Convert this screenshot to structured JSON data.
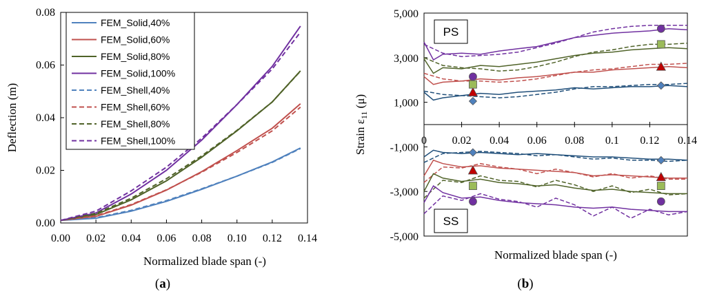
{
  "charts": {
    "a": {
      "type": "line",
      "panel_label": "a",
      "xlabel": "Normalized blade span (-)",
      "ylabel": "Deflection (m)",
      "xlim": [
        0,
        0.14
      ],
      "ylim": [
        0,
        0.08
      ],
      "x_ticks": [
        "0.00",
        "0.02",
        "0.04",
        "0.06",
        "0.08",
        "0.10",
        "0.12",
        "0.14"
      ],
      "y_ticks": [
        "0.00",
        "0.02",
        "0.04",
        "0.06",
        "0.08"
      ],
      "x": [
        0,
        0.02,
        0.04,
        0.06,
        0.08,
        0.1,
        0.12,
        0.136
      ],
      "series": [
        {
          "name": "FEM_Solid,40%",
          "color": "#4f81bd",
          "dash": false,
          "values": [
            0.001,
            0.0018,
            0.0045,
            0.0082,
            0.0128,
            0.0178,
            0.0232,
            0.0285
          ]
        },
        {
          "name": "FEM_Solid,60%",
          "color": "#c0504d",
          "dash": false,
          "values": [
            0.001,
            0.0025,
            0.0068,
            0.0125,
            0.0195,
            0.0275,
            0.036,
            0.0453
          ]
        },
        {
          "name": "FEM_Solid,80%",
          "color": "#4f6228",
          "dash": false,
          "values": [
            0.001,
            0.0032,
            0.0088,
            0.016,
            0.025,
            0.035,
            0.046,
            0.0578
          ]
        },
        {
          "name": "FEM_Solid,100%",
          "color": "#7030a0",
          "dash": false,
          "values": [
            0.001,
            0.0038,
            0.011,
            0.02,
            0.0315,
            0.045,
            0.0595,
            0.0748
          ]
        },
        {
          "name": "FEM_Shell,40%",
          "color": "#4f81bd",
          "dash": true,
          "values": [
            0.001,
            0.002,
            0.0048,
            0.0085,
            0.013,
            0.0178,
            0.023,
            0.0283
          ]
        },
        {
          "name": "FEM_Shell,60%",
          "color": "#c0504d",
          "dash": true,
          "values": [
            0.001,
            0.0027,
            0.007,
            0.0126,
            0.0193,
            0.0268,
            0.035,
            0.044
          ]
        },
        {
          "name": "FEM_Shell,80%",
          "color": "#4f6228",
          "dash": true,
          "values": [
            0.001,
            0.0036,
            0.0094,
            0.0168,
            0.0255,
            0.0352,
            0.046,
            0.0577
          ]
        },
        {
          "name": "FEM_Shell,100%",
          "color": "#7030a0",
          "dash": true,
          "values": [
            0.001,
            0.0045,
            0.0122,
            0.0212,
            0.0322,
            0.045,
            0.0585,
            0.0725
          ]
        }
      ]
    },
    "b": {
      "type": "line",
      "panel_label": "b",
      "xlabel": "Normalized blade span (-)",
      "ylabel_prefix": "Strain ε",
      "ylabel_sub": "11",
      "ylabel_suffix": " (μ)",
      "xlim": [
        0,
        0.14
      ],
      "ylim": [
        -5000,
        5000
      ],
      "x_ticks": [
        "0",
        "0.02",
        "0.04",
        "0.06",
        "0.08",
        "0.1",
        "0.12",
        "0.14"
      ],
      "y_ticks": [
        "5,000",
        "3,000",
        "1,000",
        "-1,000",
        "-3,000",
        "-5,000"
      ],
      "box_ps": "PS",
      "box_ss": "SS",
      "marker_x": [
        0.026,
        0.126
      ],
      "series": [
        {
          "name": "PS Solid 40%",
          "color": "#1f4e79",
          "dash": false,
          "x": [
            0,
            0.005,
            0.01,
            0.02,
            0.03,
            0.04,
            0.05,
            0.06,
            0.07,
            0.08,
            0.09,
            0.1,
            0.11,
            0.12,
            0.13,
            0.14
          ],
          "values": [
            1450,
            1100,
            1200,
            1300,
            1400,
            1350,
            1450,
            1500,
            1550,
            1650,
            1600,
            1650,
            1700,
            1700,
            1750,
            1700
          ]
        },
        {
          "name": "PS Shell 40%",
          "color": "#1f4e79",
          "dash": true,
          "x": [
            0,
            0.01,
            0.02,
            0.03,
            0.04,
            0.05,
            0.06,
            0.07,
            0.08,
            0.09,
            0.1,
            0.11,
            0.12,
            0.13,
            0.14
          ],
          "values": [
            1500,
            1350,
            1300,
            1250,
            1200,
            1250,
            1350,
            1450,
            1600,
            1700,
            1700,
            1750,
            1800,
            1800,
            1850
          ]
        },
        {
          "name": "PS Solid 60%",
          "color": "#c0504d",
          "dash": false,
          "x": [
            0,
            0.005,
            0.01,
            0.02,
            0.03,
            0.04,
            0.05,
            0.06,
            0.07,
            0.08,
            0.09,
            0.1,
            0.11,
            0.12,
            0.13,
            0.14
          ],
          "values": [
            2150,
            1800,
            1900,
            1950,
            2050,
            2000,
            2100,
            2150,
            2250,
            2350,
            2350,
            2450,
            2500,
            2550,
            2600,
            2550
          ]
        },
        {
          "name": "PS Shell 60%",
          "color": "#c0504d",
          "dash": true,
          "x": [
            0,
            0.01,
            0.02,
            0.03,
            0.04,
            0.05,
            0.06,
            0.07,
            0.08,
            0.09,
            0.1,
            0.11,
            0.12,
            0.13,
            0.14
          ],
          "values": [
            2300,
            2050,
            1950,
            1950,
            1900,
            1950,
            2050,
            2200,
            2350,
            2450,
            2500,
            2600,
            2700,
            2700,
            2750
          ]
        },
        {
          "name": "PS Solid 80%",
          "color": "#4f6228",
          "dash": false,
          "x": [
            0,
            0.005,
            0.01,
            0.02,
            0.03,
            0.04,
            0.05,
            0.06,
            0.07,
            0.08,
            0.09,
            0.1,
            0.11,
            0.12,
            0.13,
            0.14
          ],
          "values": [
            2950,
            2300,
            2550,
            2500,
            2650,
            2600,
            2700,
            2800,
            2950,
            3100,
            3200,
            3250,
            3350,
            3400,
            3450,
            3400
          ]
        },
        {
          "name": "PS Shell 80%",
          "color": "#4f6228",
          "dash": true,
          "x": [
            0,
            0.01,
            0.02,
            0.03,
            0.04,
            0.05,
            0.06,
            0.07,
            0.08,
            0.09,
            0.1,
            0.11,
            0.12,
            0.13,
            0.14
          ],
          "values": [
            3000,
            2650,
            2550,
            2500,
            2400,
            2450,
            2600,
            2800,
            3050,
            3250,
            3350,
            3500,
            3600,
            3600,
            3650
          ]
        },
        {
          "name": "PS Solid 100%",
          "color": "#7030a0",
          "dash": false,
          "x": [
            0,
            0.005,
            0.01,
            0.02,
            0.03,
            0.04,
            0.05,
            0.06,
            0.07,
            0.08,
            0.09,
            0.1,
            0.11,
            0.12,
            0.13,
            0.14
          ],
          "values": [
            3700,
            2900,
            3150,
            3200,
            3150,
            3300,
            3400,
            3500,
            3700,
            3900,
            4000,
            4100,
            4150,
            4200,
            4300,
            4250
          ]
        },
        {
          "name": "PS Shell 100%",
          "color": "#7030a0",
          "dash": true,
          "x": [
            0,
            0.01,
            0.02,
            0.03,
            0.04,
            0.05,
            0.06,
            0.07,
            0.08,
            0.09,
            0.1,
            0.11,
            0.12,
            0.13,
            0.14
          ],
          "values": [
            3600,
            3200,
            3050,
            3100,
            3150,
            3250,
            3450,
            3650,
            3900,
            4150,
            4300,
            4400,
            4450,
            4450,
            4450
          ]
        },
        {
          "name": "SS Solid 40%",
          "color": "#1f4e79",
          "dash": false,
          "x": [
            0,
            0.005,
            0.01,
            0.02,
            0.03,
            0.04,
            0.05,
            0.06,
            0.07,
            0.08,
            0.09,
            0.1,
            0.11,
            0.12,
            0.13,
            0.14
          ],
          "values": [
            -1450,
            -1150,
            -1250,
            -1300,
            -1250,
            -1300,
            -1350,
            -1300,
            -1350,
            -1400,
            -1450,
            -1450,
            -1500,
            -1550,
            -1550,
            -1600
          ]
        },
        {
          "name": "SS Shell 40%",
          "color": "#1f4e79",
          "dash": true,
          "x": [
            0,
            0.01,
            0.02,
            0.03,
            0.04,
            0.05,
            0.06,
            0.07,
            0.08,
            0.09,
            0.1,
            0.11,
            0.12,
            0.13,
            0.14
          ],
          "values": [
            -1700,
            -1300,
            -1250,
            -1200,
            -1250,
            -1300,
            -1400,
            -1350,
            -1450,
            -1550,
            -1500,
            -1600,
            -1600,
            -1650,
            -1600
          ]
        },
        {
          "name": "SS Solid 60%",
          "color": "#c0504d",
          "dash": false,
          "x": [
            0,
            0.005,
            0.01,
            0.02,
            0.03,
            0.04,
            0.05,
            0.06,
            0.07,
            0.08,
            0.09,
            0.1,
            0.11,
            0.12,
            0.13,
            0.14
          ],
          "values": [
            -2300,
            -1600,
            -1750,
            -1900,
            -1850,
            -1950,
            -2000,
            -2050,
            -2100,
            -2150,
            -2300,
            -2250,
            -2300,
            -2350,
            -2400,
            -2400
          ]
        },
        {
          "name": "SS Shell 60%",
          "color": "#c0504d",
          "dash": true,
          "x": [
            0,
            0.01,
            0.02,
            0.03,
            0.04,
            0.05,
            0.06,
            0.07,
            0.08,
            0.09,
            0.1,
            0.11,
            0.12,
            0.13,
            0.14
          ],
          "values": [
            -2600,
            -1900,
            -1950,
            -1750,
            -1900,
            -2000,
            -2200,
            -2000,
            -2150,
            -2350,
            -2200,
            -2400,
            -2300,
            -2450,
            -2450
          ]
        },
        {
          "name": "SS Solid 80%",
          "color": "#4f6228",
          "dash": false,
          "x": [
            0,
            0.005,
            0.01,
            0.02,
            0.03,
            0.04,
            0.05,
            0.06,
            0.07,
            0.08,
            0.09,
            0.1,
            0.11,
            0.12,
            0.13,
            0.14
          ],
          "values": [
            -3000,
            -2200,
            -2400,
            -2550,
            -2450,
            -2600,
            -2650,
            -2750,
            -2700,
            -2850,
            -2950,
            -2900,
            -3000,
            -3050,
            -3100,
            -3100
          ]
        },
        {
          "name": "SS Shell 80%",
          "color": "#4f6228",
          "dash": true,
          "x": [
            0,
            0.01,
            0.02,
            0.03,
            0.04,
            0.05,
            0.06,
            0.07,
            0.08,
            0.09,
            0.1,
            0.11,
            0.12,
            0.13,
            0.14
          ],
          "values": [
            -3300,
            -2500,
            -2600,
            -2300,
            -2500,
            -2550,
            -2800,
            -2500,
            -2700,
            -3000,
            -2750,
            -3050,
            -2900,
            -3150,
            -3100
          ]
        },
        {
          "name": "SS Solid 100%",
          "color": "#7030a0",
          "dash": false,
          "x": [
            0,
            0.005,
            0.01,
            0.02,
            0.03,
            0.04,
            0.05,
            0.06,
            0.07,
            0.08,
            0.09,
            0.1,
            0.11,
            0.12,
            0.13,
            0.14
          ],
          "values": [
            -3500,
            -2750,
            -3050,
            -3300,
            -3250,
            -3400,
            -3500,
            -3550,
            -3600,
            -3700,
            -3750,
            -3700,
            -3800,
            -3850,
            -3900,
            -3900
          ]
        },
        {
          "name": "SS Shell 100%",
          "color": "#7030a0",
          "dash": true,
          "x": [
            0,
            0.01,
            0.02,
            0.03,
            0.04,
            0.05,
            0.06,
            0.07,
            0.08,
            0.09,
            0.1,
            0.11,
            0.12,
            0.13,
            0.14
          ],
          "values": [
            -4000,
            -3200,
            -3400,
            -3100,
            -3350,
            -3450,
            -3700,
            -3300,
            -3600,
            -4100,
            -3700,
            -4200,
            -3800,
            -4050,
            -3900
          ]
        }
      ],
      "markers": [
        {
          "name": "PS 40% diamond",
          "shape": "diamond",
          "color": "#4f81bd",
          "x": 0.026,
          "y": 1050
        },
        {
          "name": "PS 60% triangle",
          "shape": "triangle",
          "color": "#c00000",
          "x": 0.026,
          "y": 1450
        },
        {
          "name": "PS 80% square",
          "shape": "square",
          "color": "#9bbb59",
          "x": 0.026,
          "y": 1800
        },
        {
          "name": "PS 100% circle",
          "shape": "circle",
          "color": "#7030a0",
          "x": 0.026,
          "y": 2150
        },
        {
          "name": "PS 40% diamond 2",
          "shape": "diamond",
          "color": "#4f81bd",
          "x": 0.126,
          "y": 1750
        },
        {
          "name": "PS 60% triangle 2",
          "shape": "triangle",
          "color": "#c00000",
          "x": 0.126,
          "y": 2600
        },
        {
          "name": "PS 80% square 2",
          "shape": "square",
          "color": "#9bbb59",
          "x": 0.126,
          "y": 3600
        },
        {
          "name": "PS 100% circle 2",
          "shape": "circle",
          "color": "#7030a0",
          "x": 0.126,
          "y": 4300
        },
        {
          "name": "SS 40% diamond",
          "shape": "diamond",
          "color": "#4f81bd",
          "x": 0.026,
          "y": -1250
        },
        {
          "name": "SS 60% triangle",
          "shape": "triangle",
          "color": "#c00000",
          "x": 0.026,
          "y": -2050
        },
        {
          "name": "SS 80% square",
          "shape": "square",
          "color": "#9bbb59",
          "x": 0.026,
          "y": -2750
        },
        {
          "name": "SS 100% circle",
          "shape": "circle",
          "color": "#7030a0",
          "x": 0.026,
          "y": -3450
        },
        {
          "name": "SS 40% diamond 2",
          "shape": "diamond",
          "color": "#4f81bd",
          "x": 0.126,
          "y": -1600
        },
        {
          "name": "SS 60% triangle 2",
          "shape": "triangle",
          "color": "#c00000",
          "x": 0.126,
          "y": -2350
        },
        {
          "name": "SS 80% square 2",
          "shape": "square",
          "color": "#9bbb59",
          "x": 0.126,
          "y": -2750
        },
        {
          "name": "SS 100% circle 2",
          "shape": "circle",
          "color": "#7030a0",
          "x": 0.126,
          "y": -3450
        }
      ]
    }
  }
}
